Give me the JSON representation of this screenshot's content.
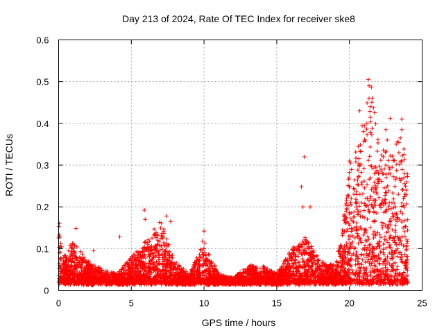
{
  "chart_data": {
    "type": "scatter",
    "title": "Day 213 of 2024, Rate Of TEC Index for receiver ske8",
    "xlabel": "GPS time / hours",
    "ylabel": "ROTI / TECUs",
    "xlim": [
      0,
      25
    ],
    "ylim": [
      0,
      0.6
    ],
    "grid": true,
    "marker": "+",
    "color": "#ff0000",
    "x_ticks": [
      0,
      5,
      10,
      15,
      20,
      25
    ],
    "x_tick_labels": [
      "0",
      "5",
      "10",
      "15",
      "20",
      "25"
    ],
    "y_ticks": [
      0,
      0.1,
      0.2,
      0.3,
      0.4,
      0.5,
      0.6
    ],
    "y_tick_labels": [
      "0",
      "0.1",
      "0.2",
      "0.3",
      "0.4",
      "0.5",
      "0.6"
    ],
    "series": [
      {
        "name": "ske8",
        "profile_x": [
          0,
          0.3,
          1,
          2,
          3,
          4,
          5,
          6,
          7,
          8,
          9,
          10,
          11,
          12,
          13,
          14,
          15,
          16,
          17,
          18,
          19,
          19.5,
          20,
          20.5,
          21,
          21.5,
          22,
          22.5,
          23,
          23.5,
          24
        ],
        "profile_upper": [
          0.16,
          0.08,
          0.12,
          0.07,
          0.05,
          0.04,
          0.08,
          0.12,
          0.17,
          0.07,
          0.04,
          0.12,
          0.04,
          0.03,
          0.06,
          0.06,
          0.04,
          0.1,
          0.13,
          0.07,
          0.06,
          0.14,
          0.3,
          0.34,
          0.42,
          0.5,
          0.35,
          0.36,
          0.33,
          0.4,
          0.28
        ],
        "highlights": [
          {
            "x": 0.05,
            "y": 0.16
          },
          {
            "x": 1.2,
            "y": 0.148
          },
          {
            "x": 2.4,
            "y": 0.095
          },
          {
            "x": 4.2,
            "y": 0.128
          },
          {
            "x": 5.9,
            "y": 0.192
          },
          {
            "x": 5.95,
            "y": 0.17
          },
          {
            "x": 7.4,
            "y": 0.178
          },
          {
            "x": 7.7,
            "y": 0.165
          },
          {
            "x": 10.0,
            "y": 0.142
          },
          {
            "x": 9.9,
            "y": 0.118
          },
          {
            "x": 16.7,
            "y": 0.248
          },
          {
            "x": 16.8,
            "y": 0.2
          },
          {
            "x": 16.9,
            "y": 0.32
          },
          {
            "x": 17.3,
            "y": 0.2
          },
          {
            "x": 20.0,
            "y": 0.31
          },
          {
            "x": 20.7,
            "y": 0.43
          },
          {
            "x": 21.3,
            "y": 0.505
          },
          {
            "x": 21.35,
            "y": 0.49
          },
          {
            "x": 21.35,
            "y": 0.46
          },
          {
            "x": 21.2,
            "y": 0.4
          },
          {
            "x": 22.5,
            "y": 0.385
          },
          {
            "x": 22.6,
            "y": 0.36
          },
          {
            "x": 22.8,
            "y": 0.412
          },
          {
            "x": 23.6,
            "y": 0.41
          },
          {
            "x": 23.6,
            "y": 0.385
          },
          {
            "x": 23.5,
            "y": 0.365
          },
          {
            "x": 23.4,
            "y": 0.33
          },
          {
            "x": 23.95,
            "y": 0.26
          },
          {
            "x": 23.9,
            "y": 0.24
          }
        ]
      }
    ]
  }
}
